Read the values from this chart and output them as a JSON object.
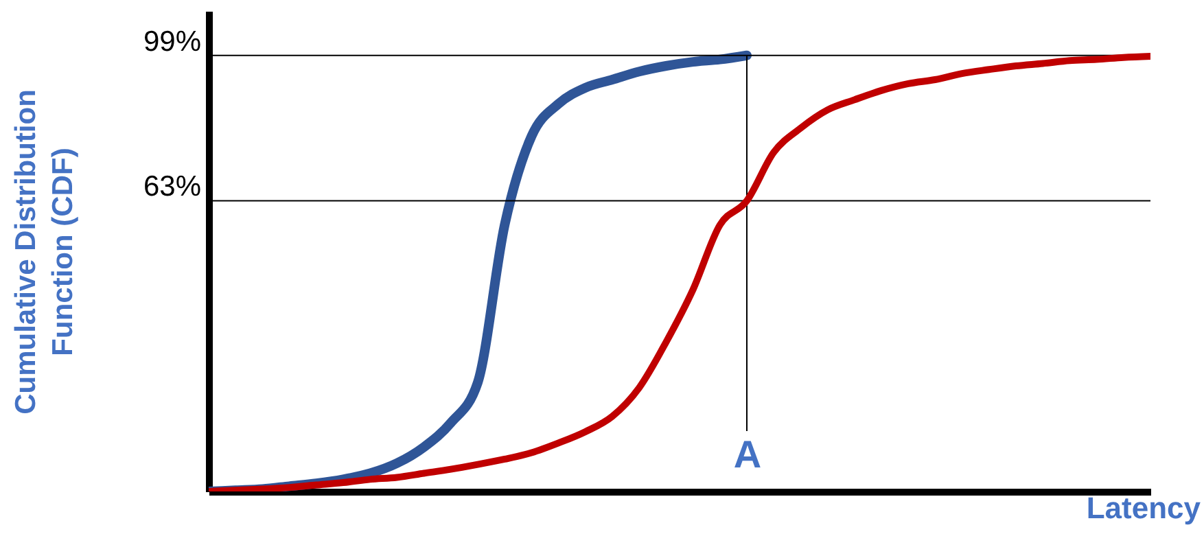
{
  "chart_data": {
    "type": "line",
    "xlabel": "Latency",
    "ylabel": "Cumulative Distribution Function (CDF)",
    "categories": [
      null,
      null,
      null,
      null,
      null,
      null,
      null,
      null,
      null,
      null,
      null,
      null,
      null,
      null,
      null,
      null,
      null,
      null,
      null,
      null,
      "A",
      null,
      null,
      null,
      null,
      null,
      null,
      null,
      null,
      null,
      null,
      null,
      null,
      null,
      null,
      null
    ],
    "series": [
      {
        "color": "#2f5597",
        "values": [
          -9,
          -8.7,
          -8.4,
          -7.7,
          -7,
          -6,
          -4.5,
          -2,
          2,
          8,
          18,
          57,
          79,
          87,
          91,
          93,
          95,
          96.4,
          97.4,
          98,
          99,
          null,
          null,
          null,
          null,
          null,
          null,
          null,
          null,
          null,
          null,
          null,
          null,
          null,
          null,
          null
        ]
      },
      {
        "color": "#c00000",
        "values": [
          -9,
          -8.7,
          -8.4,
          -8,
          -7.4,
          -6.8,
          -6,
          -5.5,
          -4.5,
          -3.5,
          -2.3,
          -1,
          0.6,
          3,
          5.8,
          9.6,
          16.7,
          28,
          41,
          57,
          63,
          75,
          81,
          85.5,
          88,
          90.3,
          92,
          93,
          94.5,
          95.5,
          96.4,
          97,
          97.7,
          98,
          98.5,
          98.8
        ]
      }
    ],
    "ylim": [
      -9,
      110
    ],
    "yticks": [
      {
        "value": 63,
        "label": "63%"
      },
      {
        "value": 99,
        "label": "99%"
      }
    ],
    "ref_lines": [
      {
        "axis": "y",
        "value": 99
      },
      {
        "axis": "y",
        "value": 63
      },
      {
        "axis": "x",
        "value": "A"
      }
    ]
  }
}
